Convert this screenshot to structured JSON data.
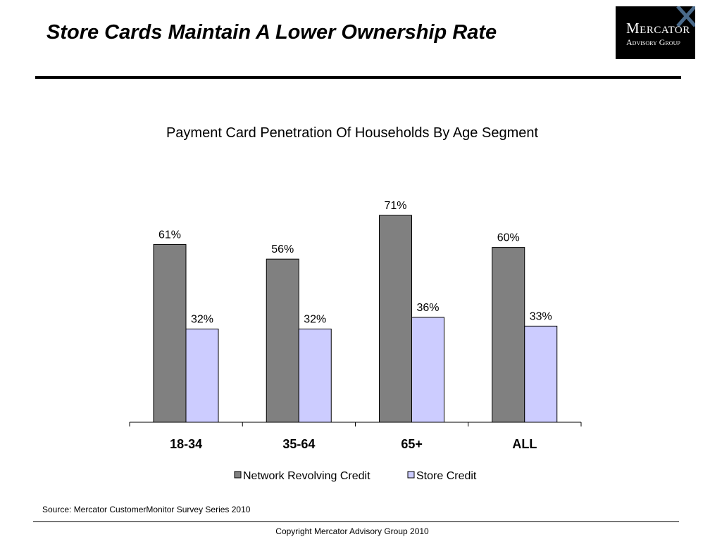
{
  "slide": {
    "title": "Store Cards Maintain A Lower Ownership Rate",
    "source": "Source:  Mercator CustomerMonitor Survey Series 2010",
    "copyright": "Copyright Mercator Advisory Group 2010"
  },
  "logo": {
    "line1": "Mercator",
    "line2": "Advisory Group"
  },
  "colors": {
    "network_revolving": "#808080",
    "store_credit": "#ccccff",
    "logo_bg": "#000000",
    "logo_accent": "#4a6a8a"
  },
  "chart_data": {
    "type": "bar",
    "title": "Payment Card Penetration Of Households By Age Segment",
    "categories": [
      "18-34",
      "35-64",
      "65+",
      "ALL"
    ],
    "series": [
      {
        "name": "Network Revolving Credit",
        "values": [
          61,
          56,
          71,
          60
        ],
        "labels": [
          "61%",
          "56%",
          "71%",
          "60%"
        ]
      },
      {
        "name": "Store Credit",
        "values": [
          32,
          32,
          36,
          33
        ],
        "labels": [
          "32%",
          "32%",
          "36%",
          "33%"
        ]
      }
    ],
    "ylim": [
      0,
      80
    ],
    "grid": false,
    "legend": "bottom"
  }
}
